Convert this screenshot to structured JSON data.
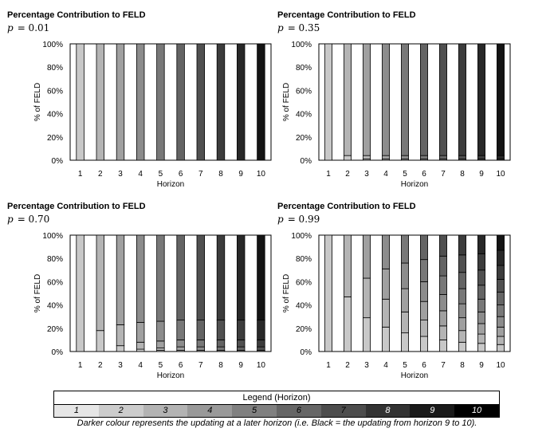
{
  "chart_data": [
    {
      "type": "bar",
      "stacked": true,
      "title": "Percentage Contribution to FELD",
      "subtitle_var": "p",
      "subtitle_value": "= 0.01",
      "xlabel": "Horizon",
      "ylabel": "% of FELD",
      "categories": [
        "1",
        "2",
        "3",
        "4",
        "5",
        "6",
        "7",
        "8",
        "9",
        "10"
      ],
      "ylim": [
        0,
        100
      ],
      "yticks": [
        "0%",
        "20%",
        "40%",
        "60%",
        "80%",
        "100%"
      ],
      "segments": [
        [
          100
        ],
        [
          0,
          100
        ],
        [
          0,
          0,
          100
        ],
        [
          0,
          0,
          0,
          100
        ],
        [
          0,
          0,
          0,
          0,
          100
        ],
        [
          0,
          0,
          0,
          0,
          0,
          100
        ],
        [
          0,
          0,
          0,
          0,
          0,
          0,
          100
        ],
        [
          0,
          0,
          0,
          0,
          0,
          0,
          0,
          100
        ],
        [
          0,
          0,
          0,
          0,
          0,
          0,
          0,
          0,
          100
        ],
        [
          0,
          0,
          0,
          0,
          0,
          0,
          0,
          0,
          0,
          100
        ]
      ]
    },
    {
      "type": "bar",
      "stacked": true,
      "title": "Percentage Contribution to FELD",
      "subtitle_var": "p",
      "subtitle_value": "= 0.35",
      "xlabel": "Horizon",
      "ylabel": "% of FELD",
      "categories": [
        "1",
        "2",
        "3",
        "4",
        "5",
        "6",
        "7",
        "8",
        "9",
        "10"
      ],
      "ylim": [
        0,
        100
      ],
      "yticks": [
        "0%",
        "20%",
        "40%",
        "60%",
        "80%",
        "100%"
      ],
      "segments": [
        [
          100
        ],
        [
          4,
          96
        ],
        [
          1,
          3,
          96
        ],
        [
          0,
          1,
          3,
          96
        ],
        [
          0,
          0,
          1,
          3,
          96
        ],
        [
          0,
          0,
          0,
          1,
          3,
          96
        ],
        [
          0,
          0,
          0,
          0,
          1,
          3,
          96
        ],
        [
          0,
          0,
          0,
          0,
          0,
          1,
          3,
          96
        ],
        [
          0,
          0,
          0,
          0,
          0,
          0,
          1,
          3,
          96
        ],
        [
          0,
          0,
          0,
          0,
          0,
          0,
          0,
          1,
          3,
          96
        ]
      ]
    },
    {
      "type": "bar",
      "stacked": true,
      "title": "Percentage Contribution to FELD",
      "subtitle_var": "p",
      "subtitle_value": "= 0.70",
      "xlabel": "Horizon",
      "ylabel": "% of FELD",
      "categories": [
        "1",
        "2",
        "3",
        "4",
        "5",
        "6",
        "7",
        "8",
        "9",
        "10"
      ],
      "ylim": [
        0,
        100
      ],
      "yticks": [
        "0%",
        "20%",
        "40%",
        "60%",
        "80%",
        "100%"
      ],
      "segments": [
        [
          100
        ],
        [
          18,
          82
        ],
        [
          5,
          18,
          77
        ],
        [
          2,
          6,
          17,
          75
        ],
        [
          1,
          2,
          6,
          17,
          74
        ],
        [
          0,
          1,
          3,
          6,
          17,
          73
        ],
        [
          0,
          0,
          1,
          3,
          6,
          17,
          73
        ],
        [
          0,
          0,
          0,
          1,
          3,
          6,
          17,
          73
        ],
        [
          0,
          0,
          0,
          0,
          1,
          3,
          6,
          17,
          73
        ],
        [
          0,
          0,
          0,
          0,
          0,
          1,
          3,
          6,
          17,
          73
        ]
      ]
    },
    {
      "type": "bar",
      "stacked": true,
      "title": "Percentage Contribution to FELD",
      "subtitle_var": "p",
      "subtitle_value": "= 0.99",
      "xlabel": "Horizon",
      "ylabel": "% of FELD",
      "categories": [
        "1",
        "2",
        "3",
        "4",
        "5",
        "6",
        "7",
        "8",
        "9",
        "10"
      ],
      "ylim": [
        0,
        100
      ],
      "yticks": [
        "0%",
        "20%",
        "40%",
        "60%",
        "80%",
        "100%"
      ],
      "segments": [
        [
          100
        ],
        [
          47,
          53
        ],
        [
          29,
          34,
          37
        ],
        [
          21,
          24,
          26,
          29
        ],
        [
          16,
          18,
          20,
          22,
          24
        ],
        [
          13,
          14,
          16,
          17,
          19,
          21
        ],
        [
          10,
          12,
          13,
          14,
          16,
          17,
          18
        ],
        [
          8,
          10,
          11,
          12,
          13,
          14,
          15,
          17
        ],
        [
          7,
          8,
          9,
          10,
          11,
          12,
          13,
          14,
          16
        ],
        [
          6,
          7,
          8,
          9,
          10,
          11,
          11,
          12,
          13,
          13
        ]
      ]
    }
  ],
  "legend": {
    "title": "Legend (Horizon)",
    "items": [
      "1",
      "2",
      "3",
      "4",
      "5",
      "6",
      "7",
      "8",
      "9",
      "10"
    ],
    "colors": [
      "#e6e6e6",
      "#cccccc",
      "#b3b3b3",
      "#999999",
      "#808080",
      "#666666",
      "#4d4d4d",
      "#333333",
      "#1a1a1a",
      "#000000"
    ],
    "text_colors": [
      "#000000",
      "#000000",
      "#000000",
      "#000000",
      "#000000",
      "#000000",
      "#000000",
      "#ffffff",
      "#ffffff",
      "#ffffff"
    ]
  },
  "bar_colors": [
    "#c8c8c8",
    "#b4b4b4",
    "#a0a0a0",
    "#8c8c8c",
    "#787878",
    "#646464",
    "#505050",
    "#3c3c3c",
    "#282828",
    "#141414"
  ],
  "caption": "Darker colour represents the updating at a later horizon (i.e. Black = the updating from horizon 9 to 10)."
}
